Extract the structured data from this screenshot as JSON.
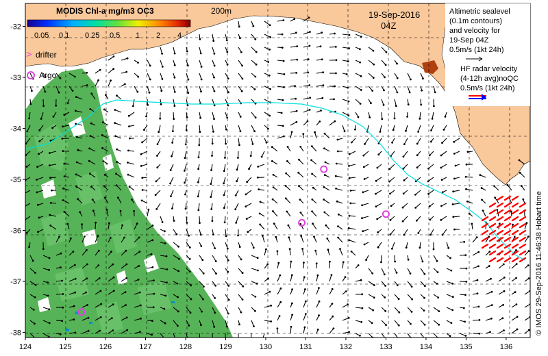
{
  "title": {
    "date": "19-Sep-2016",
    "time": "04Z",
    "depth_label": "200m"
  },
  "colorbar": {
    "title": "MODIS Chl-a mg/m3 OC3",
    "ticks": [
      "0.05",
      "0.1",
      "0.25",
      "0.5",
      "1",
      "2",
      "4"
    ]
  },
  "legend": {
    "drifter": "drifter",
    "argo": "Argo",
    "altimetry_lines": [
      "Altimetric sealevel",
      "(0.1m contours)",
      "and velocity for",
      "19-Sep 04Z"
    ],
    "altimetry_scale": "0.5m/s (1kt 24h)",
    "radar_lines": [
      "HF radar velocity",
      "(4-12h avg)noQC"
    ],
    "radar_scale": "0.5m/s (1kt 24h)"
  },
  "credit": "© IMOS 29-Sep-2016 11:46:38 Hobart time",
  "axes": {
    "x_ticks": [
      "124",
      "125",
      "126",
      "127",
      "128",
      "129",
      "130",
      "131",
      "132",
      "133",
      "134",
      "135",
      "136"
    ],
    "y_ticks": [
      "-32",
      "-33",
      "-34",
      "-35",
      "-36",
      "-37",
      "-38"
    ],
    "lon_range": [
      124,
      136.6
    ],
    "lat_range": [
      -38.1,
      -31.55
    ]
  },
  "argo_floats": [
    {
      "lon": 125.4,
      "lat": -37.6
    },
    {
      "lon": 130.9,
      "lat": -35.85
    },
    {
      "lon": 131.45,
      "lat": -34.8
    },
    {
      "lon": 133.0,
      "lat": -35.68
    }
  ],
  "colors": {
    "land": "#f9c89b",
    "contour_200m": "#00e0e0",
    "vector": "#000000",
    "radar_vector": "#ff0000",
    "argo": "#e040e0",
    "chl_green": "#3aa63a"
  }
}
